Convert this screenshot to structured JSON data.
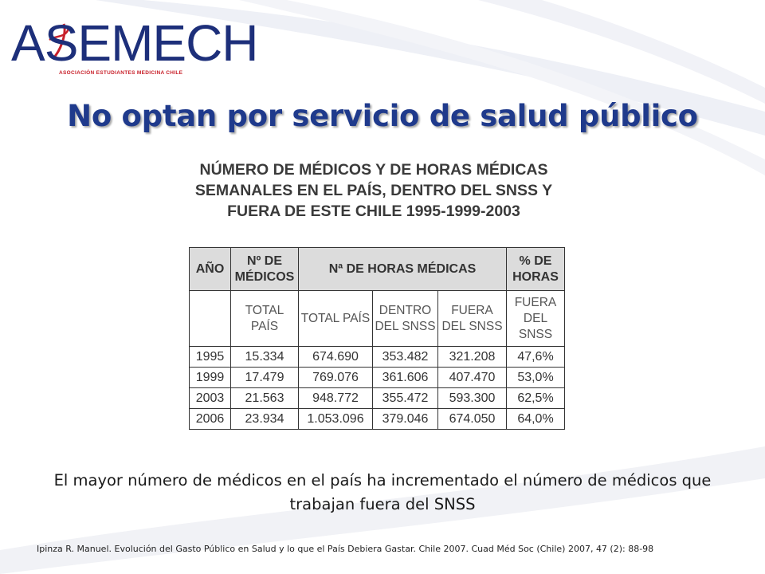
{
  "logo": {
    "text": "ASEMECH",
    "subtitle": "ASOCIACIÓN ESTUDIANTES MEDICINA CHILE"
  },
  "slide": {
    "title": "No optan por servicio de salud público",
    "caption": "El mayor número de médicos en el país ha incrementado el número de médicos que trabajan fuera del SNSS",
    "source": "Ipinza R. Manuel. Evolución del Gasto Público en Salud y lo que el País Debiera Gastar. Chile 2007.  Cuad Méd Soc (Chile) 2007, 47 (2): 88-98"
  },
  "table": {
    "title_lines": [
      "NÚMERO DE MÉDICOS Y DE HORAS MÉDICAS",
      "SEMANALES EN EL PAÍS, DENTRO DEL SNSS Y",
      "FUERA DE ESTE CHILE 1995-1999-2003"
    ],
    "headers": {
      "year": "AÑO",
      "doctors": "Nº DE MÉDICOS",
      "hours": "Nª DE HORAS MÉDICAS",
      "pct": "% DE HORAS"
    },
    "subheaders": {
      "total_pais_1": "TOTAL PAÍS",
      "total_pais_2": "TOTAL PAÍS",
      "dentro": "DENTRO DEL SNSS",
      "fuera": "FUERA DEL SNSS",
      "fuera_pct": "FUERA DEL SNSS"
    },
    "rows": [
      {
        "year": "1995",
        "medicos": "15.334",
        "total": "674.690",
        "dentro": "353.482",
        "fuera": "321.208",
        "pct": "47,6%"
      },
      {
        "year": "1999",
        "medicos": "17.479",
        "total": "769.076",
        "dentro": "361.606",
        "fuera": "407.470",
        "pct": "53,0%"
      },
      {
        "year": "2003",
        "medicos": "21.563",
        "total": "948.772",
        "dentro": "355.472",
        "fuera": "593.300",
        "pct": "62,5%"
      },
      {
        "year": "2006",
        "medicos": "23.934",
        "total": "1.053.096",
        "dentro": "379.046",
        "fuera": "674.050",
        "pct": "64,0%"
      }
    ]
  }
}
